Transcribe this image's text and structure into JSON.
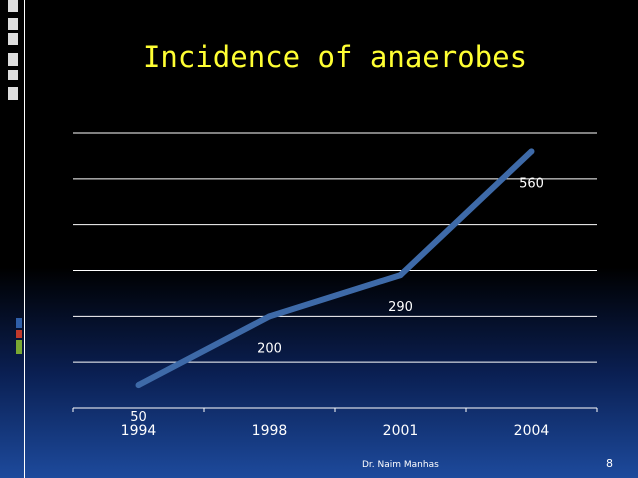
{
  "slide": {
    "title": "Incidence of anaerobes",
    "footer": "Dr. Naim Manhas",
    "page_number": "8",
    "title_color": "#ffff33",
    "line_color": "#3e6aa8"
  },
  "chart_data": {
    "type": "line",
    "categories": [
      "1994",
      "1998",
      "2001",
      "2004"
    ],
    "series": [
      {
        "values": [
          50,
          200,
          290,
          560
        ],
        "labels": [
          "50",
          "200",
          "290",
          "560"
        ]
      }
    ],
    "title": "",
    "xlabel": "",
    "ylabel": "",
    "ylim": [
      0,
      600
    ],
    "grid": true,
    "legend": "none"
  }
}
